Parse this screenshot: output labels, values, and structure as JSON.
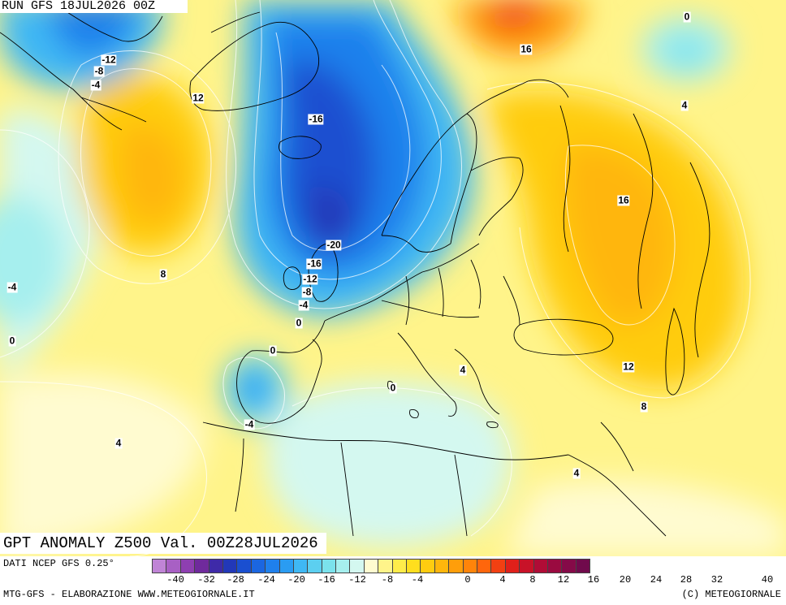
{
  "header": {
    "run": "RUN GFS 18JUL2026 00Z"
  },
  "title": "GPT ANOMALY Z500 Val. 00Z28JUL2026",
  "source": "DATI NCEP GFS 0.25°",
  "credit_left": "MTG-GFS - ELABORAZIONE WWW.METEOGIORNALE.IT",
  "credit_right": "(C) METEOGIORNALE",
  "scale": {
    "colors": [
      "#c084d6",
      "#a860c4",
      "#8e3fb1",
      "#6f2a9c",
      "#3e2aa8",
      "#2238b8",
      "#1a4fd0",
      "#1b66e0",
      "#1f80ec",
      "#2a9cf2",
      "#3fb8f4",
      "#5ccff0",
      "#7be2ec",
      "#a6efee",
      "#d4f8f0",
      "#fffbd0",
      "#fff48a",
      "#ffec4a",
      "#ffde1e",
      "#ffcc10",
      "#ffb60c",
      "#ff9e0a",
      "#ff840a",
      "#ff660c",
      "#f24012",
      "#e0201a",
      "#c81228",
      "#b00c36",
      "#9a0a40",
      "#850a48",
      "#700a4c"
    ],
    "ticks": [
      "-40",
      "-32",
      "-28",
      "-24",
      "-20",
      "-16",
      "-12",
      "-8",
      "-4",
      "0",
      "4",
      "8",
      "12",
      "16",
      "20",
      "24",
      "28",
      "32",
      "40"
    ]
  },
  "contour_labels": [
    {
      "text": "-12"
    },
    {
      "text": "-8"
    },
    {
      "text": "-4"
    },
    {
      "text": "12"
    },
    {
      "text": "-16"
    },
    {
      "text": "-20"
    },
    {
      "text": "-16"
    },
    {
      "text": "-12"
    },
    {
      "text": "-8"
    },
    {
      "text": "-4"
    },
    {
      "text": "0"
    },
    {
      "text": "0"
    },
    {
      "text": "-4"
    },
    {
      "text": "0"
    },
    {
      "text": "8"
    },
    {
      "text": "-4"
    },
    {
      "text": "4"
    },
    {
      "text": "0"
    },
    {
      "text": "4"
    },
    {
      "text": "16"
    },
    {
      "text": "0"
    },
    {
      "text": "4"
    },
    {
      "text": "16"
    },
    {
      "text": "12"
    },
    {
      "text": "8"
    },
    {
      "text": "4"
    }
  ]
}
